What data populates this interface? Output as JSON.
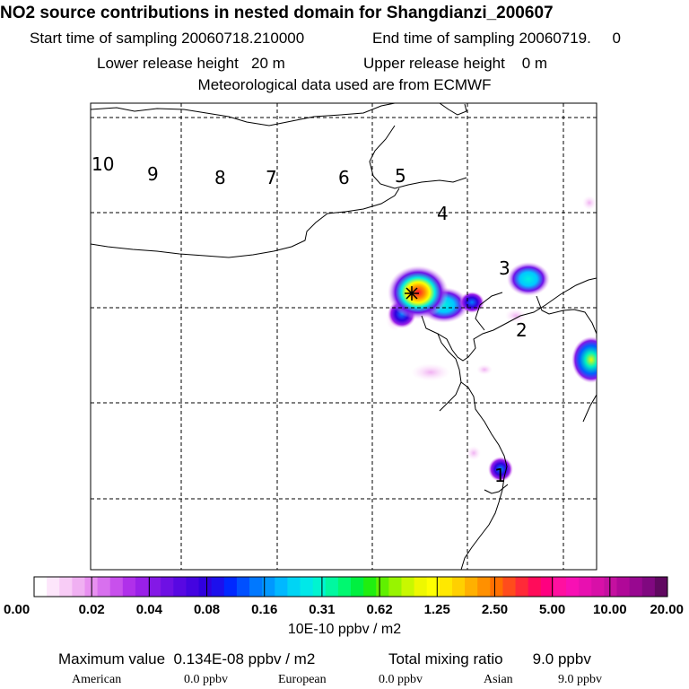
{
  "header": {
    "title": "NO2 source contributions in nested domain for Shangdianzi_200607",
    "start_label": "Start time of sampling 20060718.210000",
    "end_label": "End time of sampling 20060719.     0",
    "lower_label": "Lower release height   20 m",
    "upper_label": "Upper release height    0 m",
    "met_label": "Meteorological data used are from ECMWF"
  },
  "chart_data": {
    "type": "heatmap",
    "title": "NO2 source contributions in nested domain for Shangdianzi_200607",
    "map_labels": [
      "10",
      "9",
      "8",
      "7",
      "6",
      "5",
      "4",
      "3",
      "2",
      "1"
    ],
    "colorbar": {
      "unit": "10E-10 ppbv / m2",
      "tick_labels": [
        "0.00",
        "0.02",
        "0.04",
        "0.08",
        "0.16",
        "0.31",
        "0.62",
        "1.25",
        "2.50",
        "5.00",
        "10.00",
        "20.00"
      ],
      "colors": [
        "#ffffff",
        "#fde6fb",
        "#f8ccf6",
        "#f0b0f2",
        "#e890f0",
        "#d870ee",
        "#c850ec",
        "#b030ea",
        "#9a20e8",
        "#8418e6",
        "#6e10e4",
        "#5808e2",
        "#4404e0",
        "#3000de",
        "#1c10ec",
        "#0028ff",
        "#0050ff",
        "#0078ff",
        "#0098ff",
        "#00b8ff",
        "#00d4f4",
        "#00e8e8",
        "#00f4d0",
        "#00f8a0",
        "#00f870",
        "#00f040",
        "#20ee10",
        "#60f000",
        "#98f400",
        "#c8f800",
        "#eef800",
        "#ffff00",
        "#ffe800",
        "#ffd000",
        "#ffb000",
        "#ff9000",
        "#ff7000",
        "#ff4c1c",
        "#ff2a38",
        "#ff0c5a",
        "#ff0080",
        "#ff10a0",
        "#f810b4",
        "#e810b0",
        "#d810a8",
        "#c410a0",
        "#b00898",
        "#980890",
        "#800880",
        "#600860"
      ]
    },
    "hotspots": [
      {
        "lon": 115.6,
        "lat": 40.1,
        "value": 13.4
      },
      {
        "lon": 116.5,
        "lat": 40.2,
        "value": 0.31
      },
      {
        "lon": 117.4,
        "lat": 40.5,
        "value": 0.25
      },
      {
        "lon": 119.0,
        "lat": 39.5,
        "value": 0.9
      },
      {
        "lon": 116.5,
        "lat": 37.2,
        "value": 0.12
      }
    ],
    "receptor": {
      "lon": 115.6,
      "lat": 40.1
    },
    "grid": true
  },
  "footer": {
    "max_label": "Maximum value  0.134E-08 ppbv / m2",
    "total_label": "Total mixing ratio       9.0 ppbv",
    "american_label": "American",
    "american_value": "0.0 ppbv",
    "european_label": "European",
    "european_value": "0.0 ppbv",
    "asian_label": "Asian",
    "asian_value": "9.0 ppbv"
  }
}
